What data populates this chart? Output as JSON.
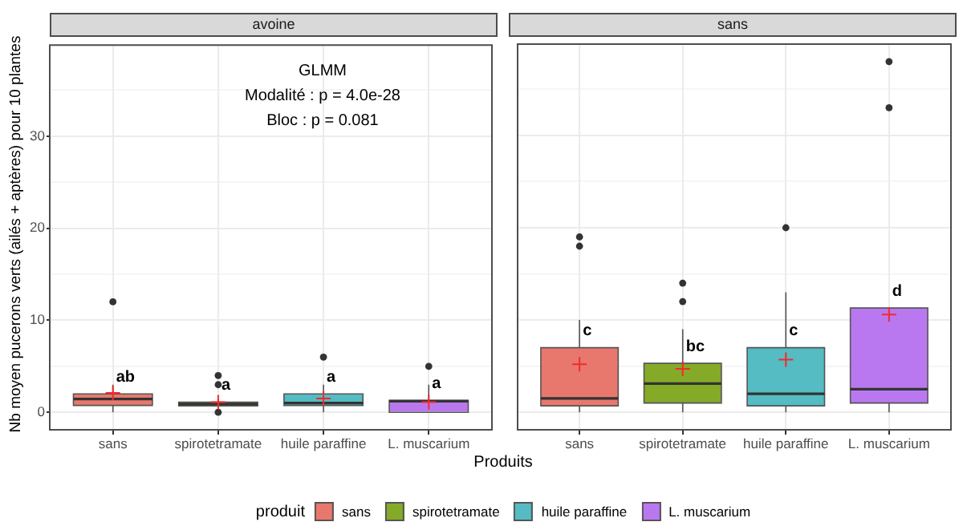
{
  "chart_data": [
    {
      "type": "box",
      "title": "avoine",
      "xlabel": "Produits",
      "ylabel": "Nb moyen pucerons verts (ailés + aptères) pour 10 plantes",
      "legend": "bottom",
      "legend_title": "produit",
      "categories": [
        "sans",
        "spirotetramate",
        "huile paraffine",
        "L. muscarium"
      ],
      "series": [
        {
          "name": "sans",
          "color": "#e8786e",
          "boxes": [
            {
              "low": 0,
              "q1": 0.75,
              "median": 1.45,
              "q3": 2,
              "high": 3,
              "mean": 2.1,
              "outliers": [
                12
              ]
            },
            null,
            null,
            null
          ]
        },
        {
          "name": "spirotetramate",
          "color": "#84aa28",
          "boxes": [
            null,
            {
              "low": 0.5,
              "q1": 0.7,
              "median": 0.9,
              "q3": 1.1,
              "high": 1.5,
              "mean": 1.1,
              "outliers": [
                4,
                3,
                0
              ]
            },
            null,
            null
          ]
        },
        {
          "name": "huile paraffine",
          "color": "#54bcc2",
          "boxes": [
            null,
            null,
            {
              "low": 0,
              "q1": 0.75,
              "median": 1,
              "q3": 2,
              "high": 3,
              "mean": 1.5,
              "outliers": [
                6
              ]
            },
            null
          ]
        },
        {
          "name": "L. muscarium",
          "color": "#ba78f0",
          "boxes": [
            null,
            null,
            null,
            {
              "low": 0,
              "q1": 0,
              "median": 1.2,
              "q3": 1.3,
              "high": 3,
              "mean": 1.1,
              "outliers": [
                5
              ]
            }
          ]
        }
      ],
      "ylim": [
        -1.9,
        39.9
      ],
      "yticks": [
        0,
        {
          "value": 5,
          "label": null
        },
        10,
        {
          "value": 15,
          "label": null
        },
        20,
        {
          "value": 25,
          "label": null
        },
        30,
        {
          "value": 35,
          "label": null
        }
      ],
      "grid": true,
      "annotations": [
        "GLMM",
        "Modalité : p = 4.0e-28",
        "Bloc : p = 0.081",
        {
          "text": "ab",
          "x": "sans",
          "y": 2
        },
        {
          "text": "a",
          "x": "spirotetramate",
          "y": 1.1
        },
        {
          "text": "a",
          "x": "huile paraffine",
          "y": 2
        },
        {
          "text": "a",
          "x": "L. muscarium",
          "y": 1.3
        }
      ]
    },
    {
      "type": "box",
      "title": "sans",
      "categories": [
        "sans",
        "spirotetramate",
        "huile paraffine",
        "L. muscarium"
      ],
      "series": [
        {
          "color": "#e8786e",
          "boxes": [
            {
              "low": 0,
              "q1": 0.7,
              "median": 1.5,
              "q3": 7,
              "high": 10,
              "mean": 5.2,
              "outliers": [
                19,
                18
              ]
            },
            null,
            null,
            null
          ]
        },
        {
          "color": "#84aa28",
          "boxes": [
            null,
            {
              "low": 0,
              "q1": 1,
              "median": 3.1,
              "q3": 5.3,
              "high": 9,
              "mean": 4.7,
              "outliers": [
                14,
                12
              ]
            },
            null,
            null
          ]
        },
        {
          "color": "#54bcc2",
          "boxes": [
            null,
            null,
            {
              "low": 0,
              "q1": 0.7,
              "median": 2,
              "q3": 7,
              "high": 13,
              "mean": 5.7,
              "outliers": [
                20
              ]
            },
            null
          ]
        },
        {
          "color": "#ba78f0",
          "boxes": [
            null,
            null,
            null,
            {
              "low": 0,
              "q1": 1,
              "median": 2.5,
              "q3": 11.3,
              "high": 11.3,
              "mean": 10.6,
              "outliers": [
                38,
                33
              ]
            }
          ]
        }
      ],
      "ylim": [
        -1.9,
        39.9
      ],
      "yticks": [
        0,
        {
          "value": 5,
          "label": null
        },
        10,
        {
          "value": 15,
          "label": null
        },
        20,
        {
          "value": 25,
          "label": null
        },
        30,
        {
          "value": 35,
          "label": null
        }
      ],
      "grid": true,
      "tick_labels": "x",
      "annotations": [
        {
          "text": "c",
          "x": "sans",
          "y": 7
        },
        {
          "text": "bc",
          "x": "spirotetramate",
          "y": 5.3
        },
        {
          "text": "c",
          "x": "huile paraffine",
          "y": 7
        },
        {
          "text": "d",
          "x": "L. muscarium",
          "y": 11.3
        }
      ]
    }
  ]
}
